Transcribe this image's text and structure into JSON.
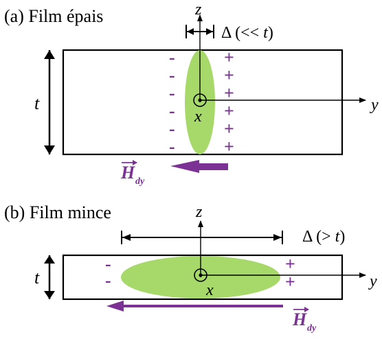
{
  "panel_a": {
    "label": "(a) Film épais",
    "z_axis": "z",
    "y_axis": "y",
    "x_axis": "x",
    "thickness": "t",
    "delta_label": "Δ (<< ",
    "delta_t": "t",
    "delta_close": ")",
    "minus_signs": [
      "-",
      "-",
      "-",
      "-",
      "-",
      "-"
    ],
    "plus_signs": [
      "+",
      "+",
      "+",
      "+",
      "+",
      "+"
    ],
    "field_label": "H",
    "field_sub": "dy"
  },
  "panel_b": {
    "label": "(b) Film mince",
    "z_axis": "z",
    "y_axis": "y",
    "x_axis": "x",
    "thickness": "t",
    "delta_label": "Δ (> ",
    "delta_t": "t",
    "delta_close": ")",
    "minus_signs": [
      "-",
      "-"
    ],
    "plus_signs": [
      "+",
      "+"
    ],
    "field_label": "H",
    "field_sub": "dy"
  },
  "colors": {
    "charge": "#7B3294",
    "domain_fill": "#A6D96A",
    "arrow_fill": "#7B3294",
    "line": "#000000"
  }
}
